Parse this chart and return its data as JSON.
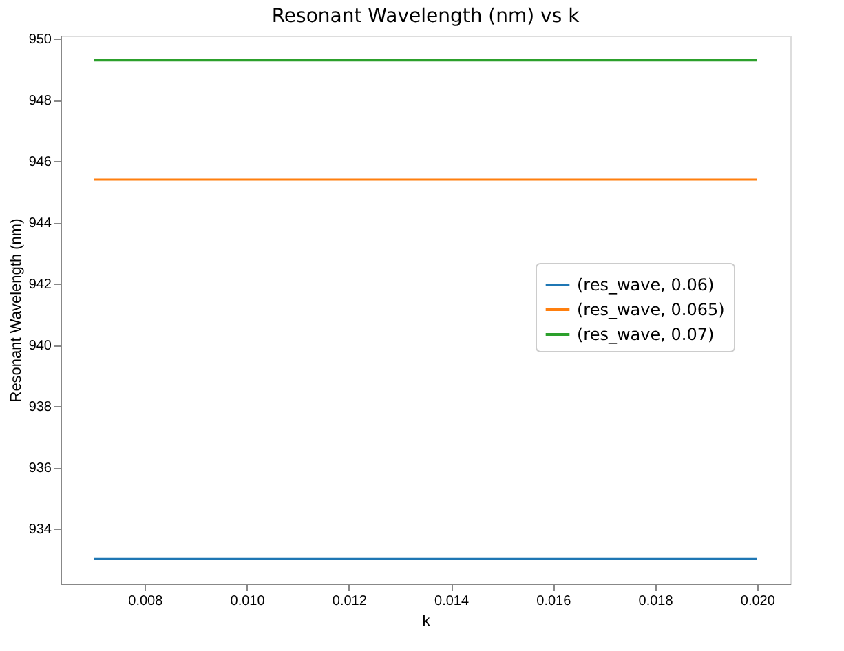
{
  "chart_data": {
    "type": "line",
    "title": "Resonant Wavelength (nm) vs k",
    "xlabel": "k",
    "ylabel": "Resonant Wavelength (nm)",
    "x": [
      0.007,
      0.02
    ],
    "series": [
      {
        "name": "(res_wave, 0.06)",
        "color": "#1f77b4",
        "values": [
          933.0,
          933.0
        ]
      },
      {
        "name": "(res_wave, 0.065)",
        "color": "#ff7f0e",
        "values": [
          945.4,
          945.4
        ]
      },
      {
        "name": "(res_wave, 0.07)",
        "color": "#2ca02c",
        "values": [
          949.3,
          949.3
        ]
      }
    ],
    "xlim": [
      0.00635,
      0.02065
    ],
    "xticks": [
      0.008,
      {
        "value": 0.01,
        "label": "0.010"
      },
      0.012,
      0.014,
      0.016,
      0.018,
      {
        "value": 0.02,
        "label": "0.020"
      }
    ],
    "ylim": [
      932.2,
      950.1
    ],
    "yticks": [
      934,
      936,
      938,
      940,
      942,
      944,
      946,
      948,
      950
    ],
    "grid": false,
    "legend": "right",
    "marker": "none",
    "line_style": "solid"
  }
}
